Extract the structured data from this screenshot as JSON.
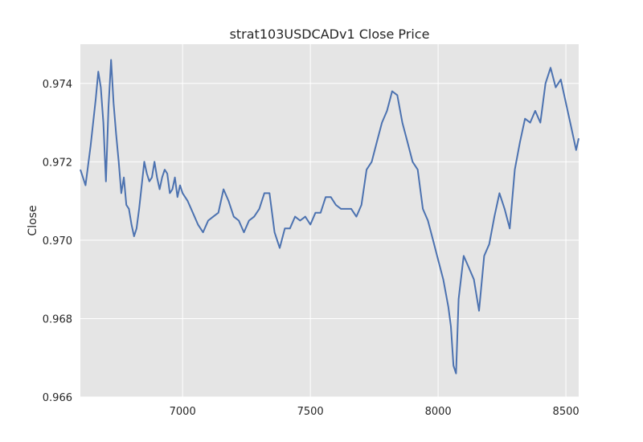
{
  "chart_data": {
    "type": "line",
    "title": "strat103USDCADv1 Close Price",
    "xlabel": "",
    "ylabel": "Close",
    "xlim": [
      6600,
      8550
    ],
    "ylim": [
      0.966,
      0.975
    ],
    "x_ticks": [
      7000,
      7500,
      8000,
      8500
    ],
    "x_tick_labels": [
      "7000",
      "7500",
      "8000",
      "8500"
    ],
    "y_ticks": [
      0.966,
      0.968,
      0.97,
      0.972,
      0.974
    ],
    "y_tick_labels": [
      "0.966",
      "0.968",
      "0.970",
      "0.972",
      "0.974"
    ],
    "grid": true,
    "colors": {
      "background": "#e5e5e5",
      "grid": "#ffffff",
      "line": "#4c72b0"
    },
    "series": [
      {
        "x": [
          6600,
          6620,
          6640,
          6660,
          6670,
          6680,
          6690,
          6700,
          6710,
          6720,
          6730,
          6740,
          6750,
          6760,
          6770,
          6780,
          6790,
          6800,
          6810,
          6820,
          6830,
          6840,
          6850,
          6860,
          6870,
          6880,
          6890,
          6900,
          6910,
          6920,
          6930,
          6940,
          6950,
          6960,
          6970,
          6980,
          6990,
          7000,
          7020,
          7040,
          7060,
          7080,
          7100,
          7120,
          7140,
          7160,
          7180,
          7200,
          7220,
          7240,
          7260,
          7280,
          7300,
          7320,
          7340,
          7360,
          7380,
          7400,
          7420,
          7440,
          7460,
          7480,
          7500,
          7520,
          7540,
          7560,
          7580,
          7600,
          7620,
          7640,
          7660,
          7680,
          7700,
          7720,
          7740,
          7760,
          7780,
          7800,
          7820,
          7840,
          7860,
          7880,
          7900,
          7920,
          7940,
          7960,
          7980,
          8000,
          8020,
          8040,
          8050,
          8060,
          8070,
          8080,
          8100,
          8120,
          8140,
          8160,
          8180,
          8200,
          8220,
          8240,
          8260,
          8280,
          8300,
          8320,
          8340,
          8360,
          8380,
          8400,
          8410,
          8420,
          8440,
          8460,
          8480,
          8500,
          8520,
          8540,
          8550
        ],
        "y": [
          0.9718,
          0.9714,
          0.9724,
          0.9736,
          0.9743,
          0.9739,
          0.973,
          0.9715,
          0.9734,
          0.9746,
          0.9735,
          0.9727,
          0.972,
          0.9712,
          0.9716,
          0.9709,
          0.9708,
          0.9704,
          0.9701,
          0.9703,
          0.9708,
          0.9714,
          0.972,
          0.9717,
          0.9715,
          0.9716,
          0.972,
          0.9716,
          0.9713,
          0.9716,
          0.9718,
          0.9717,
          0.9712,
          0.9713,
          0.9716,
          0.9711,
          0.9714,
          0.9712,
          0.971,
          0.9707,
          0.9704,
          0.9702,
          0.9705,
          0.9706,
          0.9707,
          0.9713,
          0.971,
          0.9706,
          0.9705,
          0.9702,
          0.9705,
          0.9706,
          0.9708,
          0.9712,
          0.9712,
          0.9702,
          0.9698,
          0.9703,
          0.9703,
          0.9706,
          0.9705,
          0.9706,
          0.9704,
          0.9707,
          0.9707,
          0.9711,
          0.9711,
          0.9709,
          0.9708,
          0.9708,
          0.9708,
          0.9706,
          0.9709,
          0.9718,
          0.972,
          0.9725,
          0.973,
          0.9733,
          0.9738,
          0.9737,
          0.973,
          0.9725,
          0.972,
          0.9718,
          0.9708,
          0.9705,
          0.97,
          0.9695,
          0.969,
          0.9683,
          0.9678,
          0.9668,
          0.9666,
          0.9685,
          0.9696,
          0.9693,
          0.969,
          0.9682,
          0.9696,
          0.9699,
          0.9706,
          0.9712,
          0.9708,
          0.9703,
          0.9718,
          0.9725,
          0.9731,
          0.973,
          0.9733,
          0.973,
          0.9735,
          0.974,
          0.9744,
          0.9739,
          0.9741,
          0.9735,
          0.9729,
          0.9723,
          0.9726
        ]
      }
    ]
  }
}
